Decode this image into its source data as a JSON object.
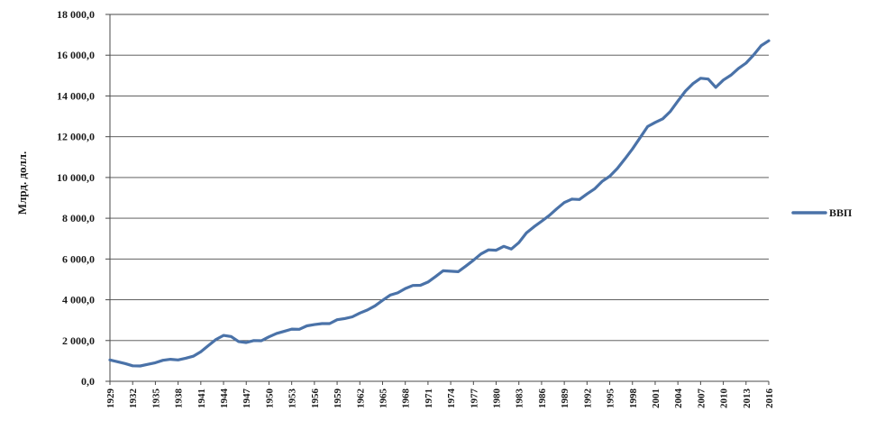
{
  "chart_data": {
    "type": "line",
    "title": "",
    "xlabel": "",
    "ylabel": "Млрд. долл.",
    "ylim": [
      0,
      18000
    ],
    "yticks": [
      0,
      2000,
      4000,
      6000,
      8000,
      10000,
      12000,
      14000,
      16000,
      18000
    ],
    "ytick_labels": [
      "0,0",
      "2 000,0",
      "4 000,0",
      "6 000,0",
      "8 000,0",
      "10 000,0",
      "12 000,0",
      "14 000,0",
      "16 000,0",
      "18 000,0"
    ],
    "xlim": [
      1929,
      2016
    ],
    "xtick_labels": [
      "1929",
      "1932",
      "1935",
      "1938",
      "1941",
      "1944",
      "1947",
      "1950",
      "1953",
      "1956",
      "1959",
      "1962",
      "1965",
      "1968",
      "1971",
      "1974",
      "1977",
      "1980",
      "1983",
      "1986",
      "1989",
      "1992",
      "1995",
      "1998",
      "2001",
      "2004",
      "2007",
      "2010",
      "2013",
      "2016"
    ],
    "grid": true,
    "legend_position": "right",
    "series": [
      {
        "name": "ВВП",
        "color": "#4a72a8",
        "x": [
          1929,
          1930,
          1931,
          1932,
          1933,
          1934,
          1935,
          1936,
          1937,
          1938,
          1939,
          1940,
          1941,
          1942,
          1943,
          1944,
          1945,
          1946,
          1947,
          1948,
          1949,
          1950,
          1951,
          1952,
          1953,
          1954,
          1955,
          1956,
          1957,
          1958,
          1959,
          1960,
          1961,
          1962,
          1963,
          1964,
          1965,
          1966,
          1967,
          1968,
          1969,
          1970,
          1971,
          1972,
          1973,
          1974,
          1975,
          1976,
          1977,
          1978,
          1979,
          1980,
          1981,
          1982,
          1983,
          1984,
          1985,
          1986,
          1987,
          1988,
          1989,
          1990,
          1991,
          1992,
          1993,
          1994,
          1995,
          1996,
          1997,
          1998,
          1999,
          2000,
          2001,
          2002,
          2003,
          2004,
          2005,
          2006,
          2007,
          2008,
          2009,
          2010,
          2011,
          2012,
          2013,
          2014,
          2015,
          2016
        ],
        "values": [
          1050,
          960,
          870,
          760,
          750,
          830,
          910,
          1030,
          1080,
          1050,
          1130,
          1230,
          1450,
          1750,
          2050,
          2250,
          2200,
          1950,
          1900,
          2000,
          1990,
          2180,
          2350,
          2450,
          2560,
          2550,
          2720,
          2780,
          2830,
          2830,
          3020,
          3080,
          3160,
          3350,
          3500,
          3700,
          3970,
          4230,
          4340,
          4550,
          4700,
          4710,
          4870,
          5140,
          5420,
          5400,
          5380,
          5650,
          5940,
          6250,
          6450,
          6430,
          6620,
          6490,
          6800,
          7280,
          7580,
          7850,
          8130,
          8460,
          8770,
          8940,
          8920,
          9190,
          9440,
          9810,
          10060,
          10440,
          10910,
          11400,
          11950,
          12500,
          12700,
          12880,
          13240,
          13750,
          14240,
          14610,
          14870,
          14830,
          14420,
          14780,
          15020,
          15350,
          15610,
          16010,
          16470,
          16710
        ]
      }
    ]
  }
}
